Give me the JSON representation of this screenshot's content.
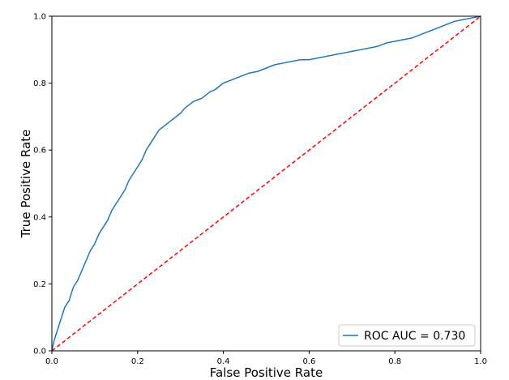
{
  "chart_data": {
    "type": "line",
    "xlabel": "False Positive Rate",
    "ylabel": "True Positive Rate",
    "xlim": [
      0.0,
      1.0
    ],
    "ylim": [
      0.0,
      1.0
    ],
    "x_ticks": [
      "0.0",
      "0.2",
      "0.4",
      "0.6",
      "0.8",
      "1.0"
    ],
    "y_ticks": [
      "0.0",
      "0.2",
      "0.4",
      "0.6",
      "0.8",
      "1.0"
    ],
    "grid": false,
    "legend_position": "lower-right",
    "series": [
      {
        "name": "ROC AUC = 0.730",
        "color": "#1f77b4",
        "style": "solid",
        "x": [
          0.0,
          0.005,
          0.01,
          0.015,
          0.02,
          0.03,
          0.04,
          0.05,
          0.06,
          0.07,
          0.08,
          0.09,
          0.1,
          0.11,
          0.12,
          0.13,
          0.14,
          0.15,
          0.16,
          0.17,
          0.18,
          0.19,
          0.2,
          0.21,
          0.22,
          0.23,
          0.24,
          0.25,
          0.26,
          0.27,
          0.28,
          0.29,
          0.3,
          0.31,
          0.32,
          0.33,
          0.34,
          0.35,
          0.36,
          0.37,
          0.38,
          0.39,
          0.4,
          0.42,
          0.44,
          0.46,
          0.48,
          0.5,
          0.52,
          0.54,
          0.56,
          0.58,
          0.6,
          0.62,
          0.64,
          0.66,
          0.68,
          0.7,
          0.72,
          0.74,
          0.76,
          0.78,
          0.8,
          0.82,
          0.84,
          0.86,
          0.88,
          0.9,
          0.92,
          0.94,
          0.96,
          0.98,
          1.0
        ],
        "y": [
          0.0,
          0.03,
          0.05,
          0.07,
          0.09,
          0.13,
          0.15,
          0.19,
          0.21,
          0.24,
          0.27,
          0.3,
          0.32,
          0.35,
          0.37,
          0.39,
          0.42,
          0.44,
          0.46,
          0.48,
          0.51,
          0.53,
          0.55,
          0.57,
          0.6,
          0.62,
          0.64,
          0.66,
          0.67,
          0.68,
          0.69,
          0.7,
          0.71,
          0.725,
          0.735,
          0.745,
          0.75,
          0.755,
          0.765,
          0.775,
          0.78,
          0.79,
          0.8,
          0.81,
          0.82,
          0.83,
          0.835,
          0.845,
          0.855,
          0.86,
          0.865,
          0.87,
          0.87,
          0.875,
          0.88,
          0.885,
          0.89,
          0.895,
          0.9,
          0.905,
          0.91,
          0.92,
          0.925,
          0.93,
          0.935,
          0.945,
          0.955,
          0.965,
          0.975,
          0.985,
          0.99,
          0.995,
          1.0
        ]
      },
      {
        "name": "",
        "color": "#ff0000",
        "style": "dashed",
        "x": [
          0.0,
          1.0
        ],
        "y": [
          0.0,
          1.0
        ]
      }
    ]
  }
}
